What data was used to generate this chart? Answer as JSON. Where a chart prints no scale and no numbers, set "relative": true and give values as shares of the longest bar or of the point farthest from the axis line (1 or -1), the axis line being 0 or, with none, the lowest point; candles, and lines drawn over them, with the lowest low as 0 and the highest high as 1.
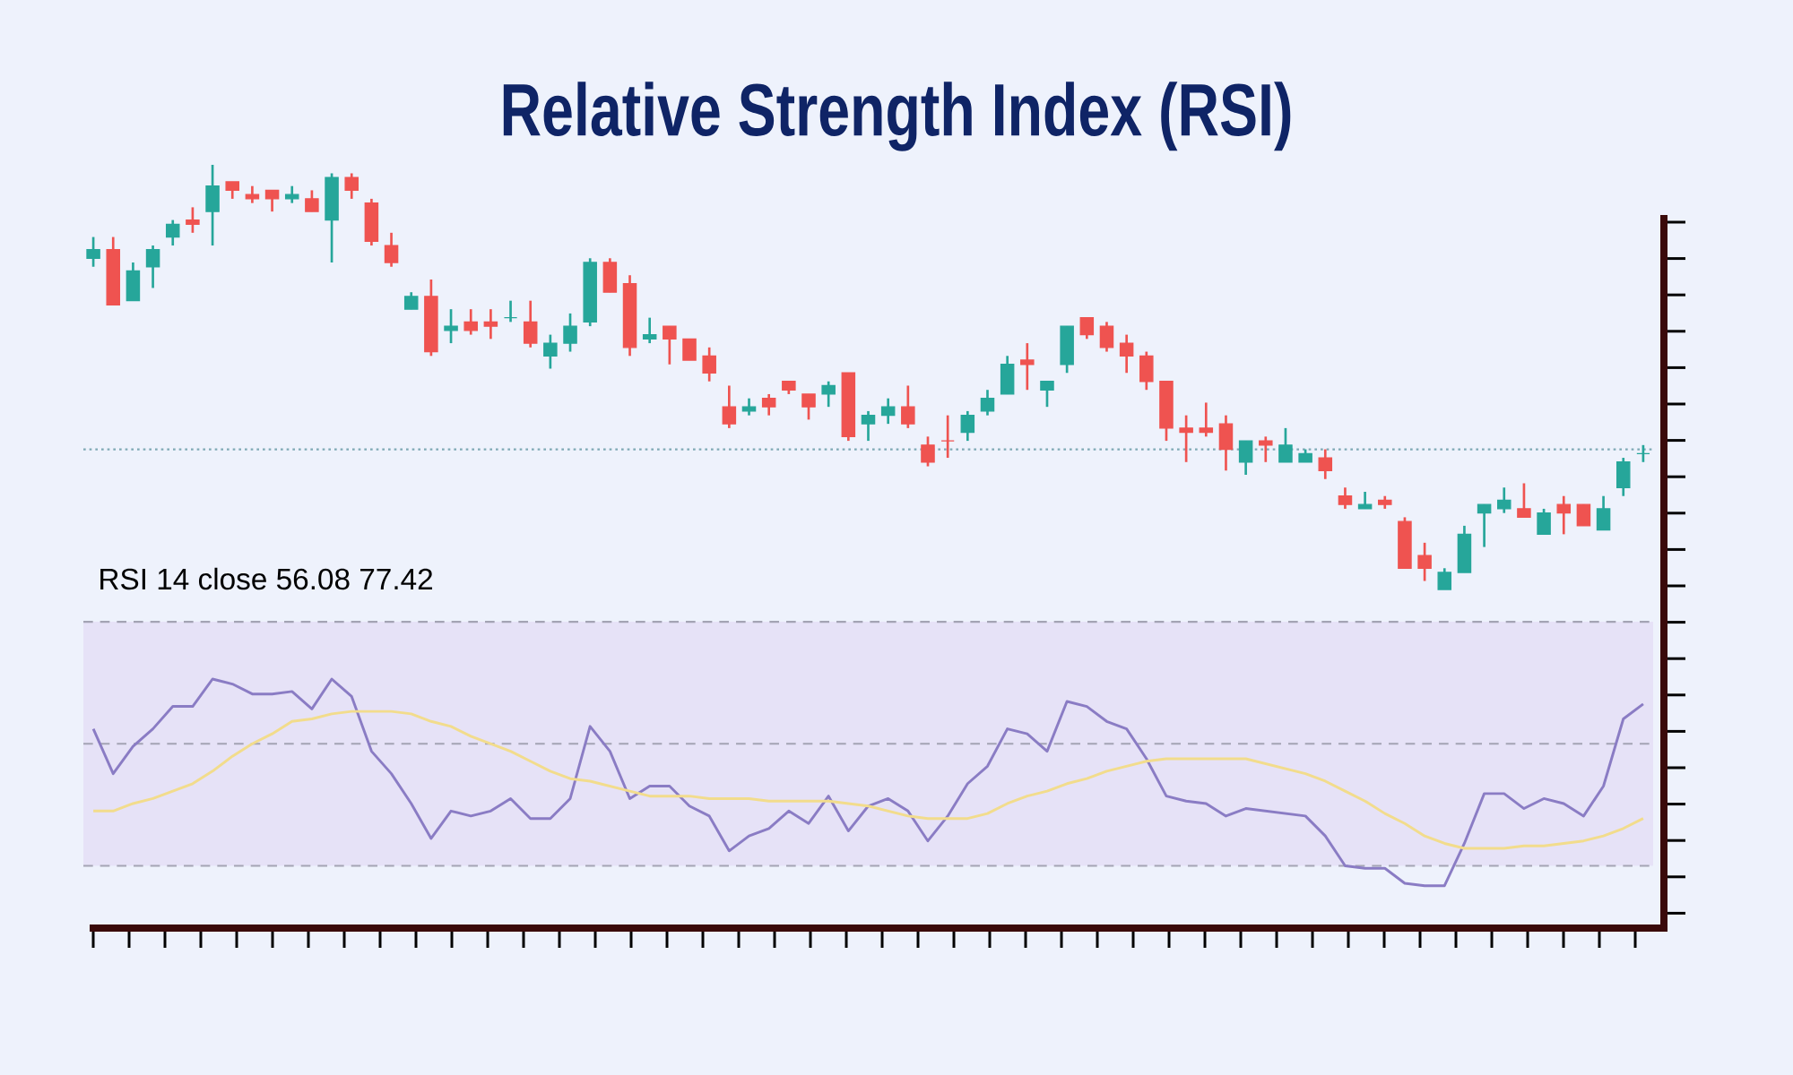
{
  "chart_data": [
    {
      "type": "candlestick",
      "title": "Relative Strength Index (RSI)",
      "relative": true,
      "categories": [
        null,
        null,
        null,
        null,
        null,
        null,
        null,
        null,
        null,
        null,
        null,
        null,
        null,
        null,
        null,
        null,
        null,
        null,
        null,
        null,
        null,
        null,
        null,
        null,
        null,
        null,
        null,
        null,
        null,
        null,
        null,
        null,
        null,
        null,
        null,
        null,
        null,
        null,
        null,
        null,
        null,
        null,
        null,
        null,
        null,
        null,
        null,
        null,
        null,
        null,
        null,
        null,
        null,
        null,
        null,
        null,
        null,
        null,
        null,
        null,
        null,
        null,
        null,
        null,
        null,
        null,
        null,
        null,
        null,
        null,
        null,
        null,
        null,
        null,
        null,
        null,
        null,
        null,
        null
      ],
      "ohlc": [
        [
          0.78,
          0.83,
          0.76,
          0.8
        ],
        [
          0.8,
          0.83,
          0.67,
          0.67
        ],
        [
          0.68,
          0.77,
          0.68,
          0.75
        ],
        [
          0.76,
          0.81,
          0.71,
          0.8
        ],
        [
          0.83,
          0.87,
          0.81,
          0.86
        ],
        [
          0.87,
          0.9,
          0.84,
          0.86
        ],
        [
          0.89,
          1.0,
          0.81,
          0.95
        ],
        [
          0.96,
          0.96,
          0.92,
          0.94
        ],
        [
          0.93,
          0.95,
          0.91,
          0.92
        ],
        [
          0.94,
          0.94,
          0.89,
          0.92
        ],
        [
          0.92,
          0.95,
          0.91,
          0.93
        ],
        [
          0.92,
          0.94,
          0.89,
          0.89
        ],
        [
          0.87,
          0.98,
          0.77,
          0.97
        ],
        [
          0.97,
          0.98,
          0.92,
          0.94
        ],
        [
          0.91,
          0.92,
          0.81,
          0.82
        ],
        [
          0.81,
          0.84,
          0.76,
          0.77
        ],
        [
          0.66,
          0.7,
          0.66,
          0.69
        ],
        [
          0.69,
          0.73,
          0.55,
          0.56
        ],
        [
          0.61,
          0.66,
          0.58,
          0.62
        ],
        [
          0.63,
          0.66,
          0.6,
          0.61
        ],
        [
          0.63,
          0.66,
          0.59,
          0.62
        ],
        [
          0.64,
          0.68,
          0.63,
          0.64
        ],
        [
          0.63,
          0.68,
          0.57,
          0.58
        ],
        [
          0.55,
          0.6,
          0.52,
          0.58
        ],
        [
          0.58,
          0.65,
          0.56,
          0.62
        ],
        [
          0.63,
          0.78,
          0.62,
          0.77
        ],
        [
          0.77,
          0.78,
          0.7,
          0.7
        ],
        [
          0.72,
          0.74,
          0.55,
          0.57
        ],
        [
          0.59,
          0.64,
          0.58,
          0.6
        ],
        [
          0.62,
          0.62,
          0.53,
          0.59
        ],
        [
          0.59,
          0.59,
          0.54,
          0.54
        ],
        [
          0.55,
          0.57,
          0.49,
          0.51
        ],
        [
          0.43,
          0.48,
          0.38,
          0.39
        ],
        [
          0.42,
          0.45,
          0.41,
          0.43
        ],
        [
          0.45,
          0.46,
          0.41,
          0.43
        ],
        [
          0.49,
          0.49,
          0.46,
          0.47
        ],
        [
          0.46,
          0.46,
          0.4,
          0.43
        ],
        [
          0.46,
          0.49,
          0.43,
          0.48
        ],
        [
          0.51,
          0.51,
          0.35,
          0.36
        ],
        [
          0.39,
          0.42,
          0.35,
          0.41
        ],
        [
          0.41,
          0.45,
          0.39,
          0.43
        ],
        [
          0.43,
          0.48,
          0.38,
          0.39
        ],
        [
          0.34,
          0.36,
          0.29,
          0.3
        ],
        [
          0.35,
          0.41,
          0.31,
          0.35
        ],
        [
          0.37,
          0.42,
          0.35,
          0.41
        ],
        [
          0.42,
          0.47,
          0.41,
          0.45
        ],
        [
          0.46,
          0.55,
          0.46,
          0.53
        ],
        [
          0.54,
          0.58,
          0.47,
          0.53
        ],
        [
          0.47,
          0.49,
          0.43,
          0.49
        ],
        [
          0.53,
          0.62,
          0.51,
          0.62
        ],
        [
          0.64,
          0.64,
          0.59,
          0.6
        ],
        [
          0.62,
          0.63,
          0.56,
          0.57
        ],
        [
          0.58,
          0.6,
          0.51,
          0.55
        ],
        [
          0.55,
          0.56,
          0.47,
          0.49
        ],
        [
          0.49,
          0.49,
          0.35,
          0.38
        ],
        [
          0.38,
          0.41,
          0.3,
          0.37
        ],
        [
          0.38,
          0.44,
          0.36,
          0.37
        ],
        [
          0.39,
          0.41,
          0.28,
          0.33
        ],
        [
          0.3,
          0.35,
          0.27,
          0.35
        ],
        [
          0.35,
          0.36,
          0.3,
          0.34
        ],
        [
          0.3,
          0.38,
          0.3,
          0.34
        ],
        [
          0.3,
          0.33,
          0.3,
          0.32
        ],
        [
          0.31,
          0.33,
          0.26,
          0.28
        ],
        [
          0.22,
          0.24,
          0.19,
          0.2
        ],
        [
          0.19,
          0.23,
          0.19,
          0.2
        ],
        [
          0.21,
          0.22,
          0.19,
          0.2
        ],
        [
          0.16,
          0.17,
          0.05,
          0.05
        ],
        [
          0.08,
          0.11,
          0.02,
          0.05
        ],
        [
          0.0,
          0.05,
          0.0,
          0.04
        ],
        [
          0.04,
          0.15,
          0.04,
          0.13
        ],
        [
          0.18,
          0.2,
          0.1,
          0.2
        ],
        [
          0.19,
          0.24,
          0.18,
          0.21
        ],
        [
          0.19,
          0.25,
          0.17,
          0.17
        ],
        [
          0.13,
          0.19,
          0.13,
          0.18
        ],
        [
          0.2,
          0.22,
          0.13,
          0.18
        ],
        [
          0.2,
          0.2,
          0.15,
          0.15
        ],
        [
          0.14,
          0.22,
          0.14,
          0.19
        ],
        [
          0.24,
          0.31,
          0.22,
          0.3
        ],
        [
          0.32,
          0.34,
          0.3,
          0.32
        ]
      ],
      "colors": [
        "#26a69a",
        "#ef5350",
        "#26a69a",
        "#26a69a",
        "#26a69a",
        "#ef5350",
        "#26a69a",
        "#ef5350",
        "#ef5350",
        "#ef5350",
        "#26a69a",
        "#ef5350",
        "#26a69a",
        "#ef5350",
        "#ef5350",
        "#ef5350",
        "#26a69a",
        "#ef5350",
        "#26a69a",
        "#ef5350",
        "#ef5350",
        "#26a69a",
        "#ef5350",
        "#26a69a",
        "#26a69a",
        "#26a69a",
        "#ef5350",
        "#ef5350",
        "#26a69a",
        "#ef5350",
        "#ef5350",
        "#ef5350",
        "#ef5350",
        "#26a69a",
        "#ef5350",
        "#ef5350",
        "#ef5350",
        "#26a69a",
        "#ef5350",
        "#26a69a",
        "#26a69a",
        "#ef5350",
        "#ef5350",
        "#ef5350",
        "#26a69a",
        "#26a69a",
        "#26a69a",
        "#ef5350",
        "#26a69a",
        "#26a69a",
        "#ef5350",
        "#ef5350",
        "#ef5350",
        "#ef5350",
        "#ef5350",
        "#ef5350",
        "#ef5350",
        "#ef5350",
        "#26a69a",
        "#ef5350",
        "#26a69a",
        "#26a69a",
        "#ef5350",
        "#ef5350",
        "#26a69a",
        "#ef5350",
        "#ef5350",
        "#ef5350",
        "#26a69a",
        "#26a69a",
        "#26a69a",
        "#26a69a",
        "#ef5350",
        "#26a69a",
        "#ef5350",
        "#ef5350",
        "#26a69a",
        "#26a69a",
        "#26a69a"
      ],
      "ref_lines": [
        {
          "axis": "y",
          "value": 0.33,
          "color": "#7fa9b5",
          "line_style": "dotted"
        }
      ]
    },
    {
      "type": "line",
      "title": "RSI 14 close 56.08 77.42",
      "relative": true,
      "categories": [
        null,
        null,
        null,
        null,
        null,
        null,
        null,
        null,
        null,
        null,
        null,
        null,
        null,
        null,
        null,
        null,
        null,
        null,
        null,
        null,
        null,
        null,
        null,
        null,
        null,
        null,
        null,
        null,
        null,
        null,
        null,
        null,
        null,
        null,
        null,
        null,
        null,
        null,
        null,
        null,
        null,
        null,
        null,
        null,
        null,
        null,
        null,
        null,
        null,
        null,
        null,
        null,
        null,
        null,
        null,
        null,
        null,
        null,
        null,
        null,
        null,
        null,
        null,
        null,
        null,
        null,
        null,
        null,
        null,
        null,
        null,
        null,
        null,
        null,
        null,
        null,
        null,
        null,
        null
      ],
      "series": [
        {
          "color": "#8a7cc4",
          "values": [
            0.8,
            0.62,
            0.73,
            0.8,
            0.89,
            0.89,
            1.0,
            0.98,
            0.94,
            0.94,
            0.95,
            0.88,
            1.0,
            0.93,
            0.71,
            0.62,
            0.5,
            0.36,
            0.47,
            0.45,
            0.47,
            0.52,
            0.44,
            0.44,
            0.52,
            0.81,
            0.71,
            0.52,
            0.57,
            0.57,
            0.49,
            0.45,
            0.31,
            0.37,
            0.4,
            0.47,
            0.42,
            0.53,
            0.39,
            0.49,
            0.52,
            0.47,
            0.35,
            0.45,
            0.58,
            0.65,
            0.8,
            0.78,
            0.71,
            0.91,
            0.89,
            0.83,
            0.8,
            0.68,
            0.53,
            0.51,
            0.5,
            0.45,
            0.48,
            0.47,
            0.46,
            0.45,
            0.37,
            0.25,
            0.24,
            0.24,
            0.18,
            0.17,
            0.17,
            0.34,
            0.54,
            0.54,
            0.48,
            0.52,
            0.5,
            0.45,
            0.57,
            0.84,
            0.9
          ]
        },
        {
          "color": "#f2dc8c",
          "values": [
            0.47,
            0.47,
            0.5,
            0.52,
            0.55,
            0.58,
            0.63,
            0.69,
            0.74,
            0.78,
            0.83,
            0.84,
            0.86,
            0.87,
            0.87,
            0.87,
            0.86,
            0.83,
            0.81,
            0.77,
            0.74,
            0.71,
            0.67,
            0.63,
            0.6,
            0.59,
            0.57,
            0.55,
            0.53,
            0.53,
            0.53,
            0.52,
            0.52,
            0.52,
            0.51,
            0.51,
            0.51,
            0.51,
            0.5,
            0.49,
            0.47,
            0.45,
            0.44,
            0.44,
            0.44,
            0.46,
            0.5,
            0.53,
            0.55,
            0.58,
            0.6,
            0.63,
            0.65,
            0.67,
            0.68,
            0.68,
            0.68,
            0.68,
            0.68,
            0.66,
            0.64,
            0.62,
            0.59,
            0.55,
            0.51,
            0.46,
            0.42,
            0.37,
            0.34,
            0.32,
            0.32,
            0.32,
            0.33,
            0.33,
            0.34,
            0.35,
            0.37,
            0.4,
            0.44
          ]
        }
      ],
      "bands": [
        {
          "axis": "y",
          "from": 0.25,
          "to": 1.23,
          "color": "#e6e2f7"
        }
      ],
      "ref_lines": [
        {
          "axis": "y",
          "value": 0.25,
          "color": "#a4a4b4",
          "line_style": "dashed"
        },
        {
          "axis": "y",
          "value": 0.74,
          "color": "#a4a4b4",
          "line_style": "dashed"
        },
        {
          "axis": "y",
          "value": 1.23,
          "color": "#a4a4b4",
          "line_style": "dashed"
        }
      ]
    }
  ]
}
